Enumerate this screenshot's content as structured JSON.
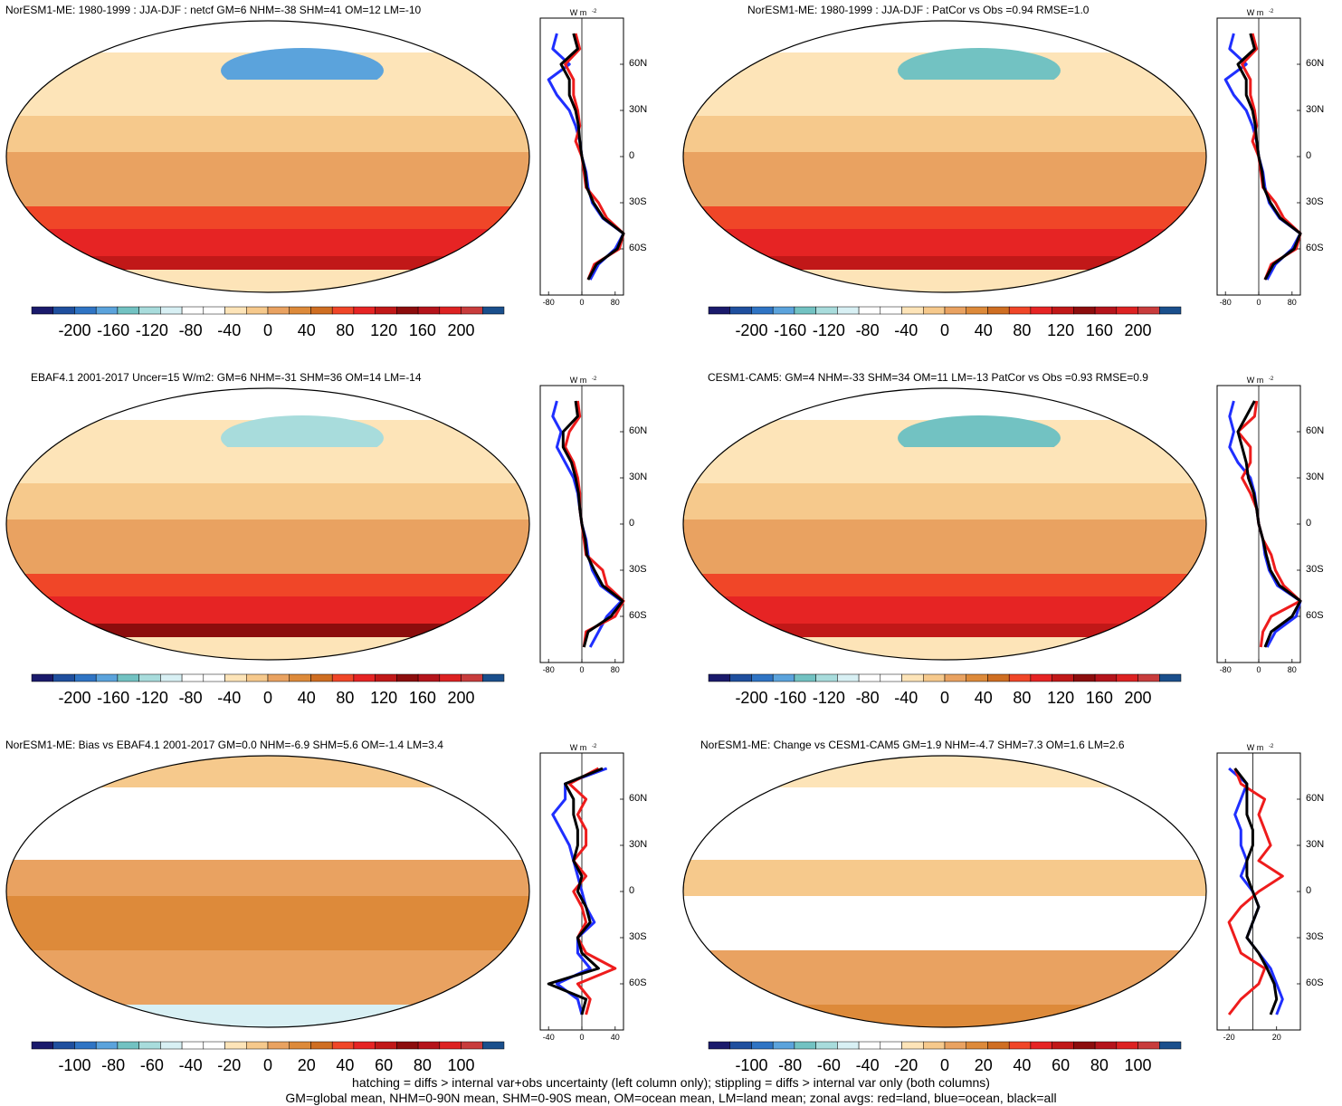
{
  "colorbar_colors": [
    "#1a1a6b",
    "#1f4f9e",
    "#2f74c4",
    "#5ba3dc",
    "#72c2c2",
    "#a8dcdc",
    "#d8f0f4",
    "#ffffff",
    "#ffffff",
    "#fde4b8",
    "#f6c98c",
    "#e9a261",
    "#dd8a3a",
    "#cf6e22",
    "#f04628",
    "#e62424",
    "#c11818",
    "#8c0d0d",
    "#b5141b",
    "#dd2222",
    "#c83c3c",
    "#1a4f8c"
  ],
  "panels": [
    {
      "title": "NorESM1-ME: 1980-1999 : JJA-DJF : netcf GM=6 NHM=-38 SHM=41 OM=12 LM=-10",
      "colorbar_ticks": [
        "-200",
        "-160",
        "-120",
        "-80",
        "-40",
        "0",
        "40",
        "80",
        "120",
        "160",
        "200"
      ],
      "zonal_units": "W m",
      "zonal_units_sup": "-2",
      "zonal_xticks": [
        "-80",
        "0",
        "80"
      ],
      "zonal_yticks": [
        "60N",
        "30N",
        "0",
        "30S",
        "60S"
      ]
    },
    {
      "title": "NorESM1-ME: 1980-1999 : JJA-DJF : PatCor vs Obs =0.94 RMSE=1.0",
      "colorbar_ticks": [
        "-200",
        "-160",
        "-120",
        "-80",
        "-40",
        "0",
        "40",
        "80",
        "120",
        "160",
        "200"
      ],
      "zonal_units": "W m",
      "zonal_units_sup": "-2",
      "zonal_xticks": [
        "-80",
        "0",
        "80"
      ],
      "zonal_yticks": [
        "60N",
        "30N",
        "0",
        "30S",
        "60S"
      ]
    },
    {
      "title": "EBAF4.1 2001-2017 Uncer=15 W/m2: GM=6 NHM=-31 SHM=36 OM=14 LM=-14",
      "colorbar_ticks": [
        "-200",
        "-160",
        "-120",
        "-80",
        "-40",
        "0",
        "40",
        "80",
        "120",
        "160",
        "200"
      ],
      "zonal_units": "W m",
      "zonal_units_sup": "-2",
      "zonal_xticks": [
        "-80",
        "0",
        "80"
      ],
      "zonal_yticks": [
        "60N",
        "30N",
        "0",
        "30S",
        "60S"
      ]
    },
    {
      "title": "CESM1-CAM5: GM=4 NHM=-33 SHM=34 OM=11 LM=-13 PatCor vs Obs =0.93 RMSE=0.9",
      "colorbar_ticks": [
        "-200",
        "-160",
        "-120",
        "-80",
        "-40",
        "0",
        "40",
        "80",
        "120",
        "160",
        "200"
      ],
      "zonal_units": "W m",
      "zonal_units_sup": "-2",
      "zonal_xticks": [
        "-80",
        "0",
        "80"
      ],
      "zonal_yticks": [
        "60N",
        "30N",
        "0",
        "30S",
        "60S"
      ]
    },
    {
      "title": "NorESM1-ME: Bias vs EBAF4.1 2001-2017 GM=0.0 NHM=-6.9 SHM=5.6 OM=-1.4 LM=3.4",
      "colorbar_ticks": [
        "-100",
        "-80",
        "-60",
        "-40",
        "-20",
        "0",
        "20",
        "40",
        "60",
        "80",
        "100"
      ],
      "zonal_units": "W m",
      "zonal_units_sup": "-2",
      "zonal_xticks": [
        "-40",
        "0",
        "40"
      ],
      "zonal_yticks": [
        "60N",
        "30N",
        "0",
        "30S",
        "60S"
      ]
    },
    {
      "title": "NorESM1-ME: Change vs CESM1-CAM5 GM=1.9 NHM=-4.7 SHM=7.3 OM=1.6 LM=2.6",
      "colorbar_ticks": [
        "-100",
        "-80",
        "-60",
        "-40",
        "-20",
        "0",
        "20",
        "40",
        "60",
        "80",
        "100"
      ],
      "zonal_units": "W m",
      "zonal_units_sup": "-2",
      "zonal_xticks": [
        "-20",
        "20"
      ],
      "zonal_yticks": [
        "60N",
        "30N",
        "0",
        "30S",
        "60S"
      ]
    }
  ],
  "footer": {
    "line1": "hatching = diffs > internal var+obs uncertainty (left column only); stippling = diffs > internal var only (both columns)",
    "line2": "GM=global mean, NHM=0-90N mean, SHM=0-90S mean, OM=ocean mean, LM=land mean; zonal avgs: red=land, blue=ocean, black=all"
  },
  "chart_data": [
    {
      "type": "heatmap",
      "title": "NorESM1-ME: 1980-1999 : JJA-DJF : netcf GM=6 NHM=-38 SHM=41 OM=12 LM=-10",
      "colorbar_range": [
        -200,
        200
      ],
      "zonal": {
        "xlim": [
          -100,
          100
        ],
        "ylim": [
          -90,
          90
        ],
        "lat": [
          80,
          70,
          60,
          50,
          40,
          30,
          20,
          10,
          0,
          -10,
          -20,
          -30,
          -40,
          -50,
          -60,
          -70,
          -80
        ],
        "land": [
          -15,
          -5,
          -40,
          -20,
          -20,
          -10,
          -5,
          -15,
          0,
          5,
          10,
          40,
          60,
          100,
          90,
          30,
          15
        ],
        "ocean": [
          -60,
          -70,
          -30,
          -80,
          -60,
          -30,
          -15,
          -5,
          0,
          10,
          15,
          25,
          50,
          100,
          80,
          40,
          20
        ],
        "all": [
          -20,
          -10,
          -50,
          -30,
          -30,
          -15,
          -8,
          -5,
          0,
          8,
          12,
          28,
          52,
          100,
          85,
          35,
          15
        ]
      }
    },
    {
      "type": "heatmap",
      "title": "NorESM1-ME: 1980-1999 : JJA-DJF : PatCor vs Obs =0.94 RMSE=1.0",
      "colorbar_range": [
        -200,
        200
      ],
      "zonal": {
        "xlim": [
          -100,
          100
        ],
        "ylim": [
          -90,
          90
        ],
        "lat": [
          80,
          70,
          60,
          50,
          40,
          30,
          20,
          10,
          0,
          -10,
          -20,
          -30,
          -40,
          -50,
          -60,
          -70,
          -80
        ],
        "land": [
          -15,
          -5,
          -40,
          -20,
          -20,
          -10,
          -5,
          -15,
          0,
          5,
          10,
          40,
          60,
          100,
          90,
          30,
          15
        ],
        "ocean": [
          -60,
          -70,
          -30,
          -80,
          -60,
          -30,
          -15,
          -5,
          0,
          10,
          15,
          25,
          50,
          100,
          80,
          40,
          20
        ],
        "all": [
          -20,
          -10,
          -50,
          -30,
          -30,
          -15,
          -8,
          -5,
          0,
          8,
          12,
          28,
          52,
          100,
          85,
          35,
          15
        ]
      }
    },
    {
      "type": "heatmap",
      "title": "EBAF4.1 2001-2017 Uncer=15 W/m2: GM=6 NHM=-31 SHM=36 OM=14 LM=-14",
      "colorbar_range": [
        -200,
        200
      ],
      "zonal": {
        "xlim": [
          -100,
          100
        ],
        "ylim": [
          -90,
          90
        ],
        "lat": [
          80,
          70,
          60,
          50,
          40,
          30,
          20,
          10,
          0,
          -10,
          -20,
          -30,
          -40,
          -50,
          -60,
          -70,
          -80
        ],
        "land": [
          -10,
          -5,
          -30,
          -40,
          -20,
          -10,
          -5,
          -5,
          0,
          5,
          10,
          50,
          60,
          100,
          80,
          10,
          5
        ],
        "ocean": [
          -60,
          -70,
          -50,
          -60,
          -40,
          -20,
          -10,
          -5,
          0,
          10,
          15,
          25,
          45,
          95,
          60,
          40,
          20
        ],
        "all": [
          -15,
          -10,
          -45,
          -45,
          -25,
          -15,
          -8,
          -5,
          0,
          8,
          12,
          30,
          50,
          98,
          70,
          15,
          5
        ]
      }
    },
    {
      "type": "heatmap",
      "title": "CESM1-CAM5: GM=4 NHM=-33 SHM=34 OM=11 LM=-13 PatCor vs Obs =0.93 RMSE=0.9",
      "colorbar_range": [
        -200,
        200
      ],
      "zonal": {
        "xlim": [
          -100,
          100
        ],
        "ylim": [
          -90,
          90
        ],
        "lat": [
          80,
          70,
          60,
          50,
          40,
          30,
          20,
          10,
          0,
          -10,
          -20,
          -30,
          -40,
          -50,
          -60,
          -70,
          -80
        ],
        "land": [
          -5,
          -10,
          -50,
          -20,
          -20,
          -40,
          -20,
          -5,
          0,
          10,
          30,
          40,
          60,
          100,
          30,
          10,
          5
        ],
        "ocean": [
          -60,
          -70,
          -60,
          -70,
          -50,
          -20,
          -10,
          -5,
          0,
          10,
          15,
          25,
          45,
          100,
          90,
          40,
          20
        ],
        "all": [
          -10,
          -30,
          -50,
          -40,
          -30,
          -25,
          -12,
          -5,
          0,
          10,
          18,
          28,
          50,
          100,
          80,
          30,
          15
        ]
      }
    },
    {
      "type": "heatmap",
      "title": "NorESM1-ME: Bias vs EBAF4.1 2001-2017 GM=0.0 NHM=-6.9 SHM=5.6 OM=-1.4 LM=3.4",
      "colorbar_range": [
        -100,
        100
      ],
      "zonal": {
        "xlim": [
          -50,
          50
        ],
        "ylim": [
          -90,
          90
        ],
        "lat": [
          80,
          70,
          60,
          50,
          40,
          30,
          20,
          10,
          0,
          -10,
          -20,
          -30,
          -40,
          -50,
          -60,
          -70,
          -80
        ],
        "land": [
          20,
          -15,
          5,
          -5,
          5,
          5,
          -10,
          5,
          -10,
          0,
          5,
          -5,
          5,
          40,
          -5,
          10,
          5
        ],
        "ocean": [
          30,
          -20,
          -20,
          -35,
          -25,
          -15,
          -10,
          -5,
          0,
          5,
          15,
          -5,
          -5,
          10,
          -30,
          -5,
          0
        ],
        "all": [
          25,
          -20,
          -10,
          -10,
          -5,
          -5,
          -10,
          0,
          -5,
          5,
          10,
          -5,
          0,
          20,
          -40,
          5,
          0
        ]
      }
    },
    {
      "type": "heatmap",
      "title": "NorESM1-ME: Change vs CESM1-CAM5 GM=1.9 NHM=-4.7 SHM=7.3 OM=1.6 LM=2.6",
      "colorbar_range": [
        -100,
        100
      ],
      "zonal": {
        "xlim": [
          -30,
          40
        ],
        "ylim": [
          -90,
          90
        ],
        "lat": [
          80,
          70,
          60,
          50,
          40,
          30,
          20,
          10,
          0,
          -10,
          -20,
          -30,
          -40,
          -50,
          -60,
          -70,
          -80
        ],
        "land": [
          -15,
          -10,
          10,
          5,
          10,
          15,
          5,
          25,
          5,
          -10,
          -20,
          -15,
          -10,
          10,
          5,
          -10,
          -20
        ],
        "ocean": [
          -20,
          -5,
          -10,
          -15,
          -10,
          -10,
          -5,
          -10,
          0,
          5,
          0,
          -5,
          5,
          15,
          20,
          25,
          20
        ],
        "all": [
          -15,
          -5,
          -5,
          -5,
          0,
          0,
          -5,
          -5,
          0,
          5,
          0,
          -5,
          5,
          12,
          18,
          20,
          15
        ]
      }
    }
  ]
}
